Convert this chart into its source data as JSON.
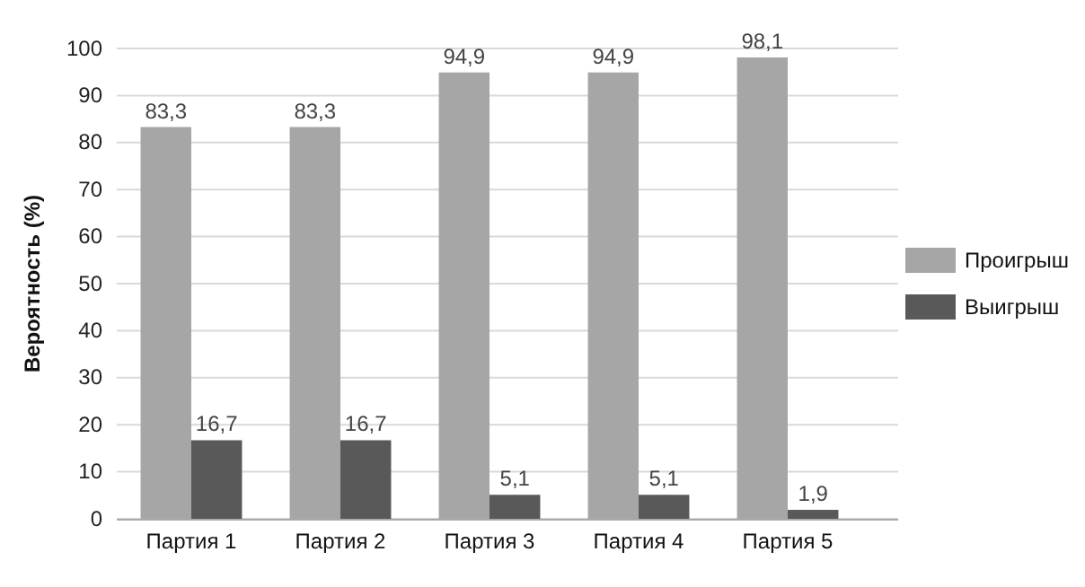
{
  "chart_data": {
    "type": "bar",
    "ylabel": "Вероятность (%)",
    "categories": [
      "Партия 1",
      "Партия 2",
      "Партия 3",
      "Партия 4",
      "Партия 5"
    ],
    "series": [
      {
        "name": "Проигрыш",
        "color": "#a6a6a6",
        "values": [
          83.3,
          83.3,
          94.9,
          94.9,
          98.1
        ]
      },
      {
        "name": "Выигрыш",
        "color": "#595959",
        "values": [
          16.7,
          16.7,
          5.1,
          5.1,
          1.9
        ]
      }
    ],
    "value_labels": [
      [
        "83,3",
        "83,3",
        "94,9",
        "94,9",
        "98,1"
      ],
      [
        "16,7",
        "16,7",
        "5,1",
        "5,1",
        "1,9"
      ]
    ],
    "ylim": [
      0,
      100
    ],
    "yticks": [
      0,
      10,
      20,
      30,
      40,
      50,
      60,
      70,
      80,
      90,
      100
    ],
    "grid": "y",
    "legend": "right"
  }
}
